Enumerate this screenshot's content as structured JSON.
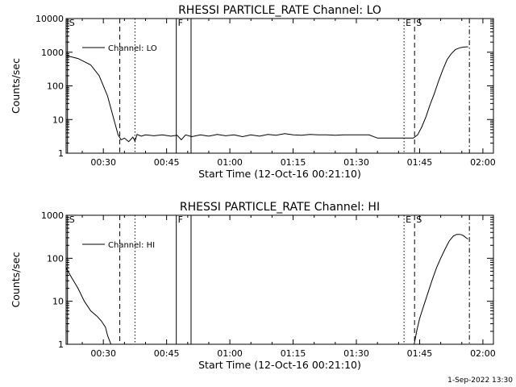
{
  "footer_timestamp": "1-Sep-2022 13:30",
  "chart_data": [
    {
      "type": "line",
      "title": "RHESSI PARTICLE_RATE Channel: LO",
      "xlabel": "Start Time (12-Oct-16 00:21:10)",
      "ylabel": "Counts/sec",
      "yscale": "log",
      "ylim": [
        1,
        10000
      ],
      "xlim_minutes": [
        21.17,
        122.5
      ],
      "xticks": [
        "00:30",
        "00:45",
        "01:00",
        "01:15",
        "01:30",
        "01:45",
        "02:00"
      ],
      "yticks": [
        "1",
        "10",
        "100",
        "1000",
        "10000"
      ],
      "series": [
        {
          "name": "Channel: LO",
          "x": [
            21.17,
            24,
            27,
            29,
            31,
            32.5,
            33.5,
            34.2,
            35,
            36,
            37,
            37.5,
            38,
            39,
            40,
            42,
            44,
            46,
            47.5,
            48.5,
            49.5,
            51,
            53,
            55,
            57,
            59,
            61,
            63,
            65,
            67,
            69,
            71,
            73,
            75,
            77,
            79,
            81,
            83,
            85,
            87,
            89,
            91,
            93,
            95,
            97,
            99,
            101,
            102.5,
            103.5,
            104.5,
            105.5,
            106.5,
            107.5,
            108.5,
            109.5,
            110.5,
            111.5,
            112.5,
            113.5,
            114.5,
            115.5,
            116.5
          ],
          "y": [
            800,
            650,
            420,
            200,
            50,
            10,
            3.5,
            2.5,
            2.8,
            2.2,
            3.0,
            2.3,
            3.6,
            3.2,
            3.5,
            3.3,
            3.5,
            3.2,
            3.4,
            2.5,
            3.5,
            3.1,
            3.5,
            3.2,
            3.6,
            3.3,
            3.5,
            3.1,
            3.5,
            3.2,
            3.6,
            3.4,
            3.8,
            3.5,
            3.4,
            3.6,
            3.5,
            3.5,
            3.4,
            3.5,
            3.5,
            3.5,
            3.5,
            2.8,
            2.8,
            2.8,
            2.8,
            2.8,
            2.8,
            3.5,
            6,
            12,
            28,
            60,
            140,
            300,
            600,
            900,
            1200,
            1350,
            1420,
            1450
          ]
        }
      ],
      "markers": [
        {
          "x": 21.5,
          "style": "solid",
          "label": "S"
        },
        {
          "x": 33.9,
          "style": "dashed",
          "label": ""
        },
        {
          "x": 37.5,
          "style": "dotted",
          "label": ""
        },
        {
          "x": 47.3,
          "style": "solid",
          "label": "F"
        },
        {
          "x": 50.8,
          "style": "solid",
          "label": ""
        },
        {
          "x": 101.3,
          "style": "dotted",
          "label": "E"
        },
        {
          "x": 103.8,
          "style": "dashed",
          "label": "S"
        },
        {
          "x": 116.8,
          "style": "dashdot",
          "label": ""
        }
      ]
    },
    {
      "type": "line",
      "title": "RHESSI PARTICLE_RATE Channel: HI",
      "xlabel": "Start Time (12-Oct-16 00:21:10)",
      "ylabel": "Counts/sec",
      "yscale": "log",
      "ylim": [
        1,
        1000
      ],
      "xlim_minutes": [
        21.17,
        122.5
      ],
      "xticks": [
        "00:30",
        "00:45",
        "01:00",
        "01:15",
        "01:30",
        "01:45",
        "02:00"
      ],
      "yticks": [
        "1",
        "10",
        "100",
        "1000"
      ],
      "series": [
        {
          "name": "Channel: HI",
          "x": [
            21.17,
            22.5,
            24,
            25.5,
            27,
            28.5,
            29.5,
            30.5,
            31,
            31.5,
            31.8
          ],
          "y": [
            60,
            35,
            20,
            10,
            6,
            4.5,
            3.5,
            2.5,
            1.6,
            1.2,
            1.0
          ]
        },
        {
          "name": "",
          "x": [
            103.7,
            104.3,
            105,
            106,
            107,
            108,
            109,
            110,
            111,
            112,
            113,
            113.8,
            114.5,
            115,
            115.5,
            116,
            116.5
          ],
          "y": [
            1.0,
            2,
            4,
            8,
            16,
            32,
            60,
            100,
            160,
            250,
            330,
            360,
            360,
            350,
            330,
            300,
            280
          ]
        }
      ],
      "markers": [
        {
          "x": 21.5,
          "style": "solid",
          "label": "S"
        },
        {
          "x": 33.9,
          "style": "dashed",
          "label": ""
        },
        {
          "x": 37.5,
          "style": "dotted",
          "label": ""
        },
        {
          "x": 47.3,
          "style": "solid",
          "label": "F"
        },
        {
          "x": 50.8,
          "style": "solid",
          "label": ""
        },
        {
          "x": 101.3,
          "style": "dotted",
          "label": "E"
        },
        {
          "x": 103.8,
          "style": "dashed",
          "label": "S"
        },
        {
          "x": 116.8,
          "style": "dashdot",
          "label": ""
        }
      ]
    }
  ]
}
